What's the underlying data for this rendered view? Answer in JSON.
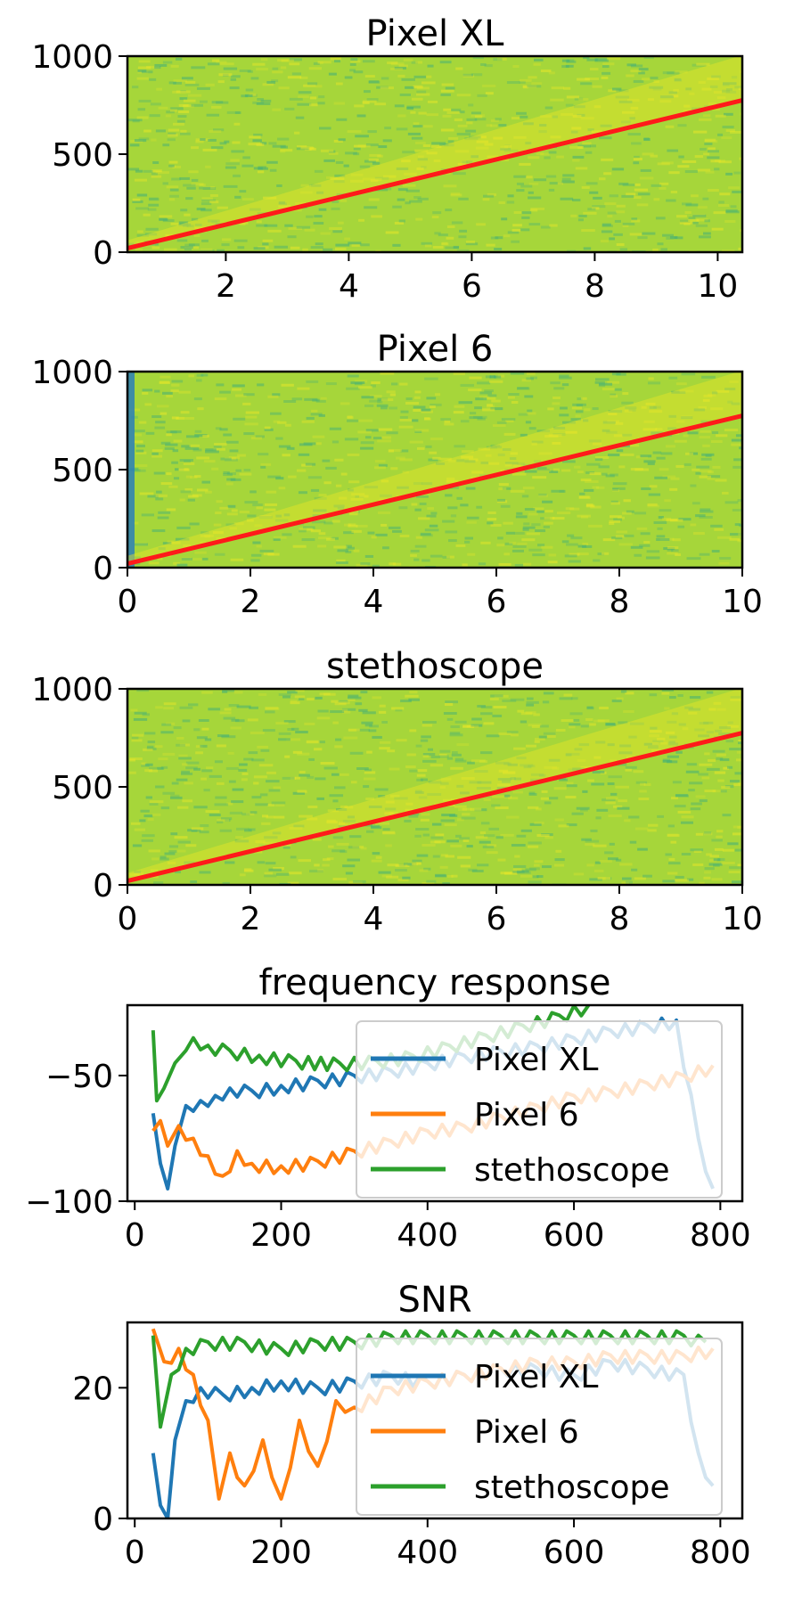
{
  "colors": {
    "spectrogram_base": "#a6d63a",
    "spectrogram_dark": "#3fae7a",
    "spectrogram_bright": "#e9e728",
    "ridge": "#ff1a1a",
    "pixel_xl": "#1f77b4",
    "pixel_6": "#ff7f0e",
    "stethoscope": "#2ca02c"
  },
  "chart_data": [
    {
      "type": "heatmap",
      "title": "Pixel XL",
      "xlim": [
        0.4,
        10.4
      ],
      "ylim": [
        0,
        1000
      ],
      "xticks": [
        2,
        4,
        6,
        8,
        10
      ],
      "yticks": [
        0,
        500,
        1000
      ],
      "ridge": {
        "x": [
          0.4,
          10.4
        ],
        "y": [
          20,
          775
        ]
      }
    },
    {
      "type": "heatmap",
      "title": "Pixel 6",
      "xlim": [
        0,
        10
      ],
      "ylim": [
        0,
        1000
      ],
      "xticks": [
        0,
        2,
        4,
        6,
        8,
        10
      ],
      "yticks": [
        0,
        500,
        1000
      ],
      "ridge": {
        "x": [
          0,
          10
        ],
        "y": [
          20,
          775
        ]
      }
    },
    {
      "type": "heatmap",
      "title": "stethoscope",
      "xlim": [
        0,
        10
      ],
      "ylim": [
        0,
        1000
      ],
      "xticks": [
        0,
        2,
        4,
        6,
        8,
        10
      ],
      "yticks": [
        0,
        500,
        1000
      ],
      "ridge": {
        "x": [
          0,
          10
        ],
        "y": [
          20,
          775
        ]
      }
    },
    {
      "type": "line",
      "title": "frequency response",
      "xlim": [
        -10,
        830
      ],
      "ylim": [
        -100,
        -22
      ],
      "xticks": [
        0,
        200,
        400,
        600,
        800
      ],
      "yticks": [
        -100,
        -50
      ],
      "yticklabels": [
        "−100",
        "−50"
      ],
      "legend": "right",
      "series": [
        {
          "name": "Pixel XL",
          "x": [
            25,
            35,
            45,
            55,
            70,
            90,
            110,
            130,
            160,
            200,
            250,
            300,
            350,
            400,
            450,
            500,
            550,
            600,
            650,
            700,
            740,
            770,
            790
          ],
          "y": [
            -65,
            -85,
            -95,
            -78,
            -62,
            -60,
            -58,
            -55,
            -56,
            -54,
            -52,
            -50,
            -48,
            -45,
            -42,
            -40,
            -38,
            -35,
            -32,
            -30,
            -28,
            -75,
            -95
          ]
        },
        {
          "name": "Pixel 6",
          "x": [
            25,
            35,
            45,
            60,
            80,
            100,
            120,
            140,
            160,
            200,
            250,
            300,
            350,
            400,
            450,
            500,
            550,
            600,
            650,
            700,
            750,
            790
          ],
          "y": [
            -72,
            -68,
            -78,
            -70,
            -75,
            -82,
            -90,
            -80,
            -85,
            -86,
            -84,
            -80,
            -76,
            -72,
            -70,
            -66,
            -62,
            -58,
            -56,
            -53,
            -50,
            -46
          ]
        },
        {
          "name": "stethoscope",
          "x": [
            25,
            30,
            40,
            55,
            70,
            80,
            100,
            130,
            170,
            220,
            280,
            330,
            380,
            430,
            480,
            530,
            580,
            620
          ],
          "y": [
            -32,
            -60,
            -55,
            -45,
            -40,
            -35,
            -38,
            -40,
            -42,
            -44,
            -45,
            -44,
            -42,
            -38,
            -34,
            -30,
            -26,
            -22
          ]
        }
      ]
    },
    {
      "type": "line",
      "title": "SNR",
      "xlim": [
        -10,
        830
      ],
      "ylim": [
        0,
        30
      ],
      "xticks": [
        0,
        200,
        400,
        600,
        800
      ],
      "yticks": [
        0,
        20
      ],
      "legend": "right",
      "series": [
        {
          "name": "Pixel XL",
          "x": [
            25,
            35,
            45,
            55,
            70,
            90,
            120,
            160,
            200,
            250,
            300,
            350,
            400,
            450,
            500,
            550,
            600,
            650,
            700,
            750,
            770,
            790
          ],
          "y": [
            10,
            2,
            0,
            12,
            18,
            20,
            19,
            20,
            21,
            20,
            21,
            22,
            21,
            22,
            23,
            23,
            22,
            24,
            23,
            22,
            10,
            5
          ]
        },
        {
          "name": "Pixel 6",
          "x": [
            25,
            40,
            60,
            80,
            100,
            115,
            130,
            150,
            175,
            200,
            225,
            250,
            275,
            300,
            350,
            400,
            450,
            500,
            550,
            600,
            650,
            700,
            750,
            790
          ],
          "y": [
            29,
            24,
            26,
            22,
            15,
            3,
            10,
            5,
            12,
            3,
            15,
            8,
            18,
            17,
            20,
            21,
            22,
            23,
            24,
            24,
            25,
            25,
            25,
            26
          ]
        },
        {
          "name": "stethoscope",
          "x": [
            25,
            35,
            50,
            70,
            100,
            150,
            200,
            250,
            300,
            350,
            400,
            450,
            500,
            550,
            600,
            650,
            700,
            750,
            780
          ],
          "y": [
            28,
            14,
            22,
            26,
            27,
            27,
            26,
            27,
            27,
            28,
            28,
            28,
            28,
            28,
            28,
            28,
            28,
            28,
            27
          ]
        }
      ]
    }
  ]
}
